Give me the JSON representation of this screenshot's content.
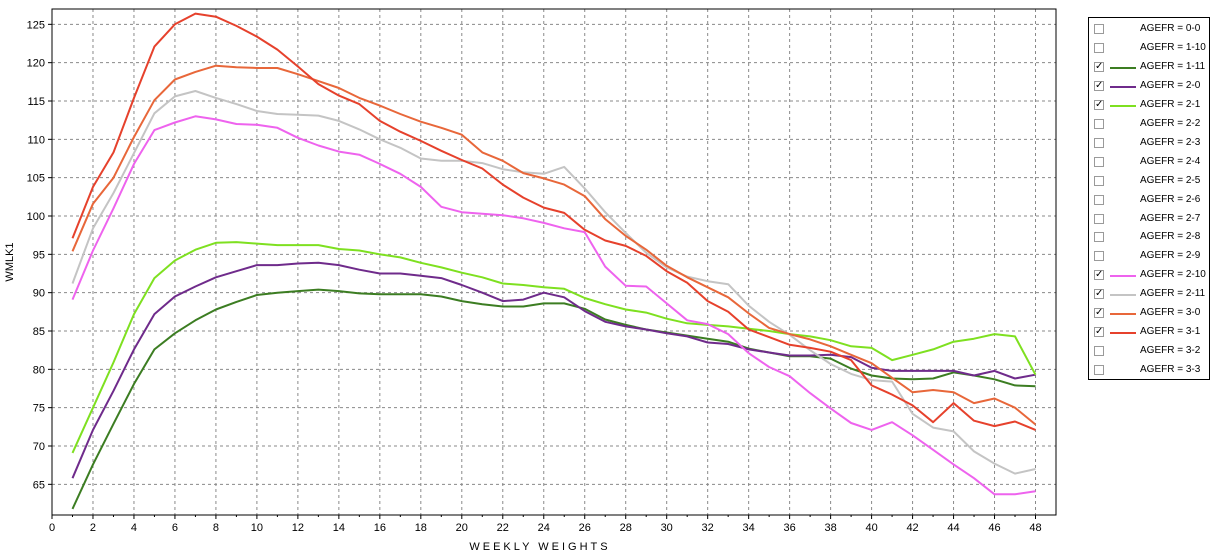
{
  "chart_data": {
    "type": "line",
    "title": "",
    "xlabel": "WEEKLY WEIGHTS",
    "ylabel": "WMLK1",
    "xlim": [
      0,
      49
    ],
    "ylim": [
      61,
      127
    ],
    "xticks": [
      0,
      2,
      4,
      6,
      8,
      10,
      12,
      14,
      16,
      18,
      20,
      22,
      24,
      26,
      28,
      30,
      32,
      34,
      36,
      38,
      40,
      42,
      44,
      46,
      48
    ],
    "yticks": [
      65,
      70,
      75,
      80,
      85,
      90,
      95,
      100,
      105,
      110,
      115,
      120,
      125
    ],
    "grid": true,
    "legend_position": "right",
    "x": [
      1,
      2,
      3,
      4,
      5,
      6,
      7,
      8,
      9,
      10,
      11,
      12,
      13,
      14,
      15,
      16,
      17,
      18,
      19,
      20,
      21,
      22,
      23,
      24,
      25,
      26,
      27,
      28,
      29,
      30,
      31,
      32,
      33,
      34,
      35,
      36,
      37,
      38,
      39,
      40,
      41,
      42,
      43,
      44,
      45,
      46,
      47,
      48
    ],
    "series": [
      {
        "name": "AGEFR = 1-11",
        "color": "#3c7d22",
        "values": [
          61.8,
          67.6,
          72.9,
          78.1,
          82.6,
          84.7,
          86.4,
          87.8,
          88.8,
          89.7,
          90.0,
          90.2,
          90.4,
          90.2,
          89.9,
          89.8,
          89.8,
          89.8,
          89.5,
          88.9,
          88.5,
          88.2,
          88.2,
          88.6,
          88.6,
          87.9,
          86.5,
          85.8,
          85.2,
          84.8,
          84.4,
          84.0,
          83.6,
          82.7,
          82.2,
          81.7,
          81.7,
          81.4,
          80.1,
          79.2,
          78.8,
          78.7,
          78.8,
          79.6,
          79.2,
          78.7,
          77.9,
          77.8
        ]
      },
      {
        "name": "AGEFR = 2-0",
        "color": "#6f2b8b",
        "values": [
          65.8,
          72.1,
          77.2,
          82.6,
          87.2,
          89.5,
          90.8,
          92.0,
          92.8,
          93.6,
          93.6,
          93.8,
          93.9,
          93.6,
          93.0,
          92.5,
          92.5,
          92.2,
          91.9,
          91.0,
          90.0,
          88.9,
          89.1,
          90.0,
          89.4,
          87.6,
          86.2,
          85.6,
          85.2,
          84.7,
          84.3,
          83.5,
          83.3,
          82.6,
          82.2,
          81.8,
          81.8,
          81.9,
          81.6,
          80.2,
          79.8,
          79.8,
          79.8,
          79.8,
          79.2,
          79.8,
          78.8,
          79.3
        ]
      },
      {
        "name": "AGEFR = 2-1",
        "color": "#7ee020",
        "values": [
          69.1,
          75.0,
          80.9,
          87.2,
          91.9,
          94.2,
          95.6,
          96.5,
          96.6,
          96.4,
          96.2,
          96.2,
          96.2,
          95.7,
          95.5,
          95.0,
          94.6,
          93.9,
          93.3,
          92.6,
          92.0,
          91.2,
          91.0,
          90.7,
          90.5,
          89.3,
          88.5,
          87.8,
          87.4,
          86.6,
          86.0,
          85.8,
          85.6,
          85.3,
          85.0,
          84.6,
          84.3,
          83.8,
          83.0,
          82.8,
          81.2,
          81.9,
          82.6,
          83.6,
          84.0,
          84.6,
          84.3,
          79.3
        ]
      },
      {
        "name": "AGEFR = 2-10",
        "color": "#ee63ee",
        "values": [
          89.1,
          95.5,
          101.0,
          106.8,
          111.2,
          112.2,
          113.0,
          112.6,
          112.0,
          111.9,
          111.5,
          110.2,
          109.2,
          108.4,
          108.0,
          106.8,
          105.5,
          103.8,
          101.2,
          100.5,
          100.3,
          100.1,
          99.7,
          99.1,
          98.4,
          97.9,
          93.4,
          90.9,
          90.8,
          88.6,
          86.4,
          85.9,
          84.6,
          82.1,
          80.3,
          79.1,
          76.9,
          74.9,
          73.0,
          72.1,
          73.1,
          71.4,
          69.5,
          67.6,
          65.8,
          63.7,
          63.7,
          64.1
        ]
      },
      {
        "name": "AGEFR = 2-11",
        "color": "#c4c4c4",
        "values": [
          91.2,
          98.4,
          103.0,
          108.2,
          113.4,
          115.6,
          116.3,
          115.4,
          114.6,
          113.7,
          113.3,
          113.2,
          113.1,
          112.4,
          111.3,
          110.0,
          108.9,
          107.5,
          107.2,
          107.2,
          106.9,
          106.1,
          105.7,
          105.5,
          106.4,
          103.6,
          100.5,
          97.8,
          95.2,
          93.3,
          92.1,
          91.5,
          91.1,
          88.3,
          86.2,
          84.5,
          82.5,
          80.7,
          79.4,
          78.6,
          78.4,
          74.2,
          72.4,
          71.9,
          69.3,
          67.7,
          66.4,
          67.0
        ]
      },
      {
        "name": "AGEFR = 3-0",
        "color": "#e8673a",
        "values": [
          95.4,
          101.6,
          105.0,
          110.3,
          115.1,
          117.8,
          118.8,
          119.6,
          119.4,
          119.3,
          119.3,
          118.5,
          117.6,
          116.7,
          115.4,
          114.4,
          113.3,
          112.3,
          111.5,
          110.6,
          108.3,
          107.2,
          105.6,
          104.9,
          104.1,
          102.6,
          99.6,
          97.4,
          95.6,
          93.5,
          92.0,
          90.7,
          89.4,
          87.3,
          85.4,
          84.6,
          83.9,
          83.0,
          81.9,
          80.8,
          78.9,
          77.0,
          77.3,
          77.0,
          75.6,
          76.2,
          75.0,
          72.8
        ]
      },
      {
        "name": "AGEFR = 3-1",
        "color": "#e6412c",
        "values": [
          97.1,
          103.8,
          108.3,
          115.4,
          122.1,
          125.0,
          126.4,
          126.0,
          124.8,
          123.4,
          121.7,
          119.5,
          117.2,
          115.7,
          114.6,
          112.4,
          111.0,
          109.8,
          108.5,
          107.3,
          106.2,
          104.1,
          102.4,
          101.1,
          100.4,
          98.2,
          96.8,
          96.1,
          94.8,
          92.8,
          91.3,
          88.9,
          87.5,
          85.2,
          84.2,
          83.2,
          82.8,
          82.3,
          81.2,
          77.9,
          76.7,
          75.3,
          73.1,
          75.6,
          73.3,
          72.6,
          73.2,
          72.1
        ]
      }
    ]
  },
  "legend": {
    "items": [
      {
        "label": "AGEFR = 0-0",
        "checked": false,
        "color": ""
      },
      {
        "label": "AGEFR = 1-10",
        "checked": false,
        "color": ""
      },
      {
        "label": "AGEFR = 1-11",
        "checked": true,
        "color": "#3c7d22"
      },
      {
        "label": "AGEFR = 2-0",
        "checked": true,
        "color": "#6f2b8b"
      },
      {
        "label": "AGEFR = 2-1",
        "checked": true,
        "color": "#7ee020"
      },
      {
        "label": "AGEFR = 2-2",
        "checked": false,
        "color": ""
      },
      {
        "label": "AGEFR = 2-3",
        "checked": false,
        "color": ""
      },
      {
        "label": "AGEFR = 2-4",
        "checked": false,
        "color": ""
      },
      {
        "label": "AGEFR = 2-5",
        "checked": false,
        "color": ""
      },
      {
        "label": "AGEFR = 2-6",
        "checked": false,
        "color": ""
      },
      {
        "label": "AGEFR = 2-7",
        "checked": false,
        "color": ""
      },
      {
        "label": "AGEFR = 2-8",
        "checked": false,
        "color": ""
      },
      {
        "label": "AGEFR = 2-9",
        "checked": false,
        "color": ""
      },
      {
        "label": "AGEFR = 2-10",
        "checked": true,
        "color": "#ee63ee"
      },
      {
        "label": "AGEFR = 2-11",
        "checked": true,
        "color": "#c4c4c4"
      },
      {
        "label": "AGEFR = 3-0",
        "checked": true,
        "color": "#e8673a"
      },
      {
        "label": "AGEFR = 3-1",
        "checked": true,
        "color": "#e6412c"
      },
      {
        "label": "AGEFR = 3-2",
        "checked": false,
        "color": ""
      },
      {
        "label": "AGEFR = 3-3",
        "checked": false,
        "color": ""
      }
    ]
  }
}
